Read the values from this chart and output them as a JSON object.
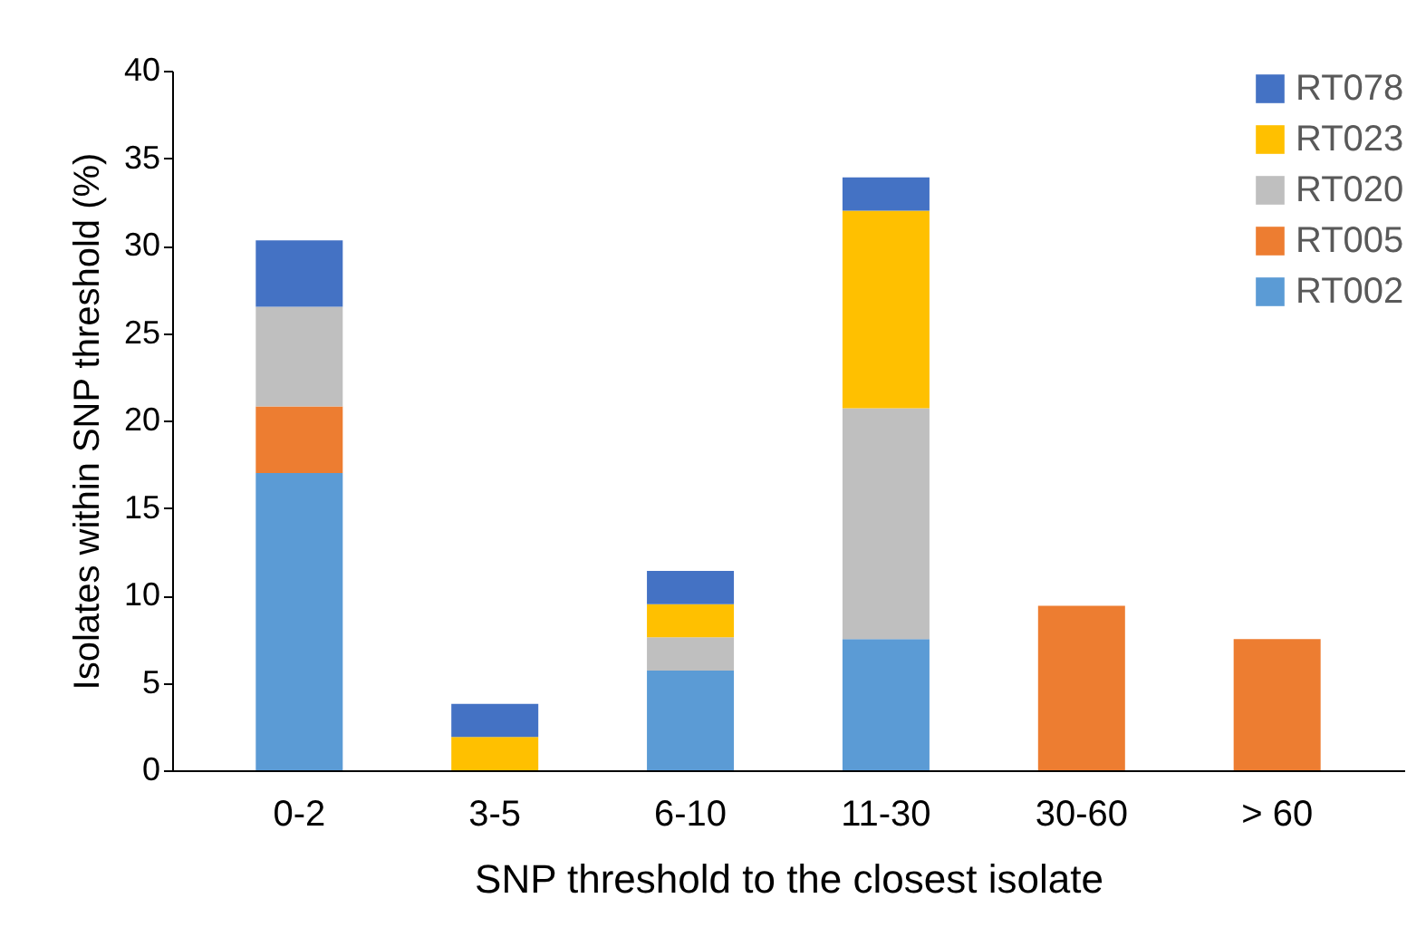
{
  "chart_data": {
    "type": "bar",
    "stacked": true,
    "xlabel": "SNP threshold to the closest isolate",
    "ylabel": "Isolates within SNP  threshold (%)",
    "categories": [
      "0-2",
      "3-5",
      "6-10",
      "11-30",
      "30-60",
      "> 60"
    ],
    "series": [
      {
        "name": "RT002",
        "color": "#5b9bd5",
        "values": [
          17.0,
          null,
          5.7,
          7.5,
          null,
          null
        ]
      },
      {
        "name": "RT005",
        "color": "#ed7d31",
        "values": [
          3.8,
          null,
          null,
          null,
          9.4,
          7.5
        ]
      },
      {
        "name": "RT020",
        "color": "#bfbfbf",
        "values": [
          5.7,
          null,
          1.9,
          13.2,
          null,
          null
        ]
      },
      {
        "name": "RT023",
        "color": "#ffc000",
        "values": [
          null,
          1.9,
          1.9,
          11.3,
          null,
          null
        ]
      },
      {
        "name": "RT078",
        "color": "#4472c4",
        "values": [
          3.8,
          1.9,
          1.9,
          1.9,
          null,
          null
        ]
      }
    ],
    "ylim": [
      0,
      40
    ],
    "yticks": [
      0,
      5,
      10,
      15,
      20,
      25,
      30,
      35,
      40
    ],
    "grid": false,
    "legend": "top right"
  }
}
